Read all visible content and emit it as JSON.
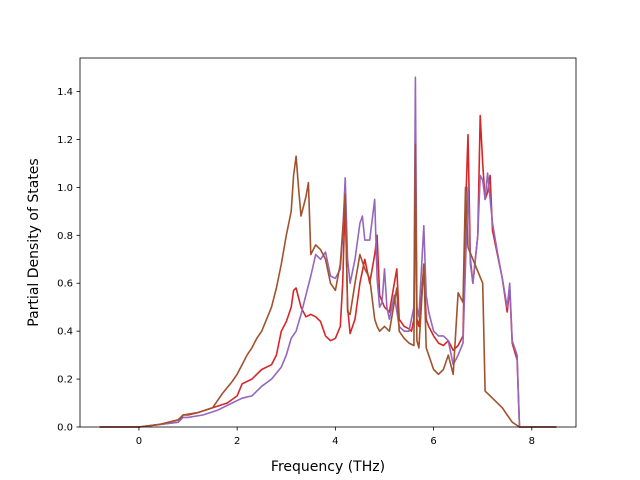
{
  "chart_data": {
    "type": "line",
    "title": "",
    "xlabel": "Frequency (THz)",
    "ylabel": "Partial Density of States",
    "xlim": [
      -1.2,
      8.9
    ],
    "ylim": [
      0.0,
      1.54
    ],
    "xticks": [
      0,
      2,
      4,
      6,
      8
    ],
    "yticks": [
      0.0,
      0.2,
      0.4,
      0.6,
      0.8,
      1.0,
      1.2,
      1.4
    ],
    "grid": false,
    "legend": "none",
    "series": [
      {
        "color": "#d62728",
        "points": [
          [
            -0.8,
            0.0
          ],
          [
            0.0,
            0.0
          ],
          [
            0.4,
            0.01
          ],
          [
            0.8,
            0.02
          ],
          [
            0.9,
            0.05
          ],
          [
            1.0,
            0.05
          ],
          [
            1.2,
            0.06
          ],
          [
            1.5,
            0.08
          ],
          [
            1.8,
            0.1
          ],
          [
            2.0,
            0.13
          ],
          [
            2.1,
            0.18
          ],
          [
            2.3,
            0.2
          ],
          [
            2.5,
            0.24
          ],
          [
            2.7,
            0.26
          ],
          [
            2.8,
            0.3
          ],
          [
            2.9,
            0.4
          ],
          [
            3.0,
            0.44
          ],
          [
            3.1,
            0.5
          ],
          [
            3.15,
            0.57
          ],
          [
            3.2,
            0.58
          ],
          [
            3.3,
            0.5
          ],
          [
            3.4,
            0.46
          ],
          [
            3.5,
            0.47
          ],
          [
            3.6,
            0.46
          ],
          [
            3.7,
            0.44
          ],
          [
            3.8,
            0.38
          ],
          [
            3.9,
            0.36
          ],
          [
            4.0,
            0.37
          ],
          [
            4.1,
            0.42
          ],
          [
            4.15,
            0.6
          ],
          [
            4.2,
            0.96
          ],
          [
            4.25,
            0.5
          ],
          [
            4.3,
            0.39
          ],
          [
            4.4,
            0.45
          ],
          [
            4.5,
            0.6
          ],
          [
            4.6,
            0.7
          ],
          [
            4.7,
            0.6
          ],
          [
            4.8,
            0.72
          ],
          [
            4.85,
            0.8
          ],
          [
            4.9,
            0.55
          ],
          [
            5.0,
            0.5
          ],
          [
            5.1,
            0.48
          ],
          [
            5.2,
            0.6
          ],
          [
            5.25,
            0.66
          ],
          [
            5.3,
            0.45
          ],
          [
            5.4,
            0.42
          ],
          [
            5.5,
            0.41
          ],
          [
            5.55,
            0.4
          ],
          [
            5.6,
            0.45
          ],
          [
            5.63,
            1.12
          ],
          [
            5.66,
            0.45
          ],
          [
            5.7,
            0.42
          ],
          [
            5.8,
            0.67
          ],
          [
            5.85,
            0.45
          ],
          [
            5.9,
            0.42
          ],
          [
            6.0,
            0.38
          ],
          [
            6.1,
            0.35
          ],
          [
            6.2,
            0.34
          ],
          [
            6.3,
            0.36
          ],
          [
            6.4,
            0.32
          ],
          [
            6.5,
            0.34
          ],
          [
            6.6,
            0.38
          ],
          [
            6.65,
            0.9
          ],
          [
            6.7,
            1.22
          ],
          [
            6.75,
            0.7
          ],
          [
            6.8,
            0.6
          ],
          [
            6.9,
            0.8
          ],
          [
            6.95,
            1.3
          ],
          [
            7.0,
            1.1
          ],
          [
            7.05,
            0.95
          ],
          [
            7.1,
            0.98
          ],
          [
            7.15,
            1.05
          ],
          [
            7.2,
            0.82
          ],
          [
            7.3,
            0.72
          ],
          [
            7.4,
            0.62
          ],
          [
            7.5,
            0.48
          ],
          [
            7.55,
            0.58
          ],
          [
            7.6,
            0.35
          ],
          [
            7.7,
            0.28
          ],
          [
            7.75,
            0.0
          ],
          [
            8.5,
            0.0
          ]
        ]
      },
      {
        "color": "#9467bd",
        "points": [
          [
            -0.8,
            0.0
          ],
          [
            0.0,
            0.0
          ],
          [
            0.4,
            0.01
          ],
          [
            0.8,
            0.02
          ],
          [
            0.9,
            0.04
          ],
          [
            1.0,
            0.04
          ],
          [
            1.3,
            0.05
          ],
          [
            1.6,
            0.07
          ],
          [
            1.9,
            0.1
          ],
          [
            2.1,
            0.12
          ],
          [
            2.3,
            0.13
          ],
          [
            2.5,
            0.17
          ],
          [
            2.7,
            0.2
          ],
          [
            2.9,
            0.25
          ],
          [
            3.0,
            0.3
          ],
          [
            3.1,
            0.37
          ],
          [
            3.2,
            0.4
          ],
          [
            3.3,
            0.47
          ],
          [
            3.4,
            0.55
          ],
          [
            3.5,
            0.63
          ],
          [
            3.6,
            0.72
          ],
          [
            3.7,
            0.7
          ],
          [
            3.8,
            0.73
          ],
          [
            3.9,
            0.63
          ],
          [
            4.0,
            0.62
          ],
          [
            4.1,
            0.66
          ],
          [
            4.15,
            0.8
          ],
          [
            4.2,
            1.04
          ],
          [
            4.25,
            0.7
          ],
          [
            4.3,
            0.6
          ],
          [
            4.4,
            0.7
          ],
          [
            4.5,
            0.85
          ],
          [
            4.55,
            0.88
          ],
          [
            4.6,
            0.78
          ],
          [
            4.7,
            0.78
          ],
          [
            4.8,
            0.95
          ],
          [
            4.85,
            0.62
          ],
          [
            4.9,
            0.5
          ],
          [
            4.95,
            0.52
          ],
          [
            5.0,
            0.66
          ],
          [
            5.05,
            0.5
          ],
          [
            5.1,
            0.45
          ],
          [
            5.2,
            0.55
          ],
          [
            5.3,
            0.42
          ],
          [
            5.4,
            0.4
          ],
          [
            5.5,
            0.4
          ],
          [
            5.6,
            0.5
          ],
          [
            5.63,
            1.46
          ],
          [
            5.66,
            0.5
          ],
          [
            5.7,
            0.46
          ],
          [
            5.8,
            0.84
          ],
          [
            5.85,
            0.55
          ],
          [
            5.9,
            0.48
          ],
          [
            6.0,
            0.4
          ],
          [
            6.1,
            0.38
          ],
          [
            6.2,
            0.38
          ],
          [
            6.3,
            0.36
          ],
          [
            6.4,
            0.26
          ],
          [
            6.5,
            0.3
          ],
          [
            6.6,
            0.35
          ],
          [
            6.7,
            1.0
          ],
          [
            6.75,
            0.68
          ],
          [
            6.8,
            0.6
          ],
          [
            6.9,
            0.8
          ],
          [
            6.95,
            1.05
          ],
          [
            7.0,
            1.03
          ],
          [
            7.05,
            0.95
          ],
          [
            7.1,
            1.06
          ],
          [
            7.2,
            0.85
          ],
          [
            7.3,
            0.73
          ],
          [
            7.4,
            0.62
          ],
          [
            7.5,
            0.5
          ],
          [
            7.55,
            0.6
          ],
          [
            7.6,
            0.36
          ],
          [
            7.7,
            0.3
          ],
          [
            7.75,
            0.0
          ],
          [
            8.5,
            0.0
          ]
        ]
      },
      {
        "color": "#a0522d",
        "points": [
          [
            -0.8,
            0.0
          ],
          [
            0.0,
            0.0
          ],
          [
            0.4,
            0.01
          ],
          [
            0.8,
            0.03
          ],
          [
            0.9,
            0.05
          ],
          [
            1.2,
            0.06
          ],
          [
            1.5,
            0.08
          ],
          [
            1.7,
            0.14
          ],
          [
            1.9,
            0.19
          ],
          [
            2.0,
            0.22
          ],
          [
            2.1,
            0.26
          ],
          [
            2.2,
            0.3
          ],
          [
            2.3,
            0.33
          ],
          [
            2.4,
            0.37
          ],
          [
            2.5,
            0.4
          ],
          [
            2.6,
            0.45
          ],
          [
            2.7,
            0.5
          ],
          [
            2.8,
            0.58
          ],
          [
            2.9,
            0.68
          ],
          [
            3.0,
            0.8
          ],
          [
            3.1,
            0.9
          ],
          [
            3.15,
            1.05
          ],
          [
            3.2,
            1.13
          ],
          [
            3.25,
            1.0
          ],
          [
            3.3,
            0.88
          ],
          [
            3.4,
            0.96
          ],
          [
            3.45,
            1.02
          ],
          [
            3.5,
            0.72
          ],
          [
            3.6,
            0.76
          ],
          [
            3.7,
            0.74
          ],
          [
            3.8,
            0.7
          ],
          [
            3.9,
            0.6
          ],
          [
            4.0,
            0.57
          ],
          [
            4.1,
            0.68
          ],
          [
            4.2,
            0.97
          ],
          [
            4.25,
            0.48
          ],
          [
            4.3,
            0.47
          ],
          [
            4.4,
            0.6
          ],
          [
            4.5,
            0.72
          ],
          [
            4.6,
            0.66
          ],
          [
            4.7,
            0.62
          ],
          [
            4.8,
            0.45
          ],
          [
            4.85,
            0.42
          ],
          [
            4.9,
            0.4
          ],
          [
            5.0,
            0.42
          ],
          [
            5.1,
            0.4
          ],
          [
            5.2,
            0.52
          ],
          [
            5.25,
            0.58
          ],
          [
            5.3,
            0.4
          ],
          [
            5.4,
            0.37
          ],
          [
            5.5,
            0.35
          ],
          [
            5.6,
            0.34
          ],
          [
            5.63,
            1.18
          ],
          [
            5.66,
            0.36
          ],
          [
            5.7,
            0.33
          ],
          [
            5.8,
            0.68
          ],
          [
            5.85,
            0.33
          ],
          [
            5.9,
            0.3
          ],
          [
            6.0,
            0.24
          ],
          [
            6.1,
            0.22
          ],
          [
            6.2,
            0.24
          ],
          [
            6.3,
            0.3
          ],
          [
            6.4,
            0.22
          ],
          [
            6.5,
            0.56
          ],
          [
            6.6,
            0.52
          ],
          [
            6.65,
            1.0
          ],
          [
            6.7,
            0.75
          ],
          [
            6.8,
            0.7
          ],
          [
            6.9,
            0.65
          ],
          [
            7.0,
            0.6
          ],
          [
            7.05,
            0.15
          ],
          [
            7.2,
            0.12
          ],
          [
            7.4,
            0.08
          ],
          [
            7.6,
            0.02
          ],
          [
            7.75,
            0.0
          ],
          [
            8.5,
            0.0
          ]
        ]
      }
    ]
  }
}
